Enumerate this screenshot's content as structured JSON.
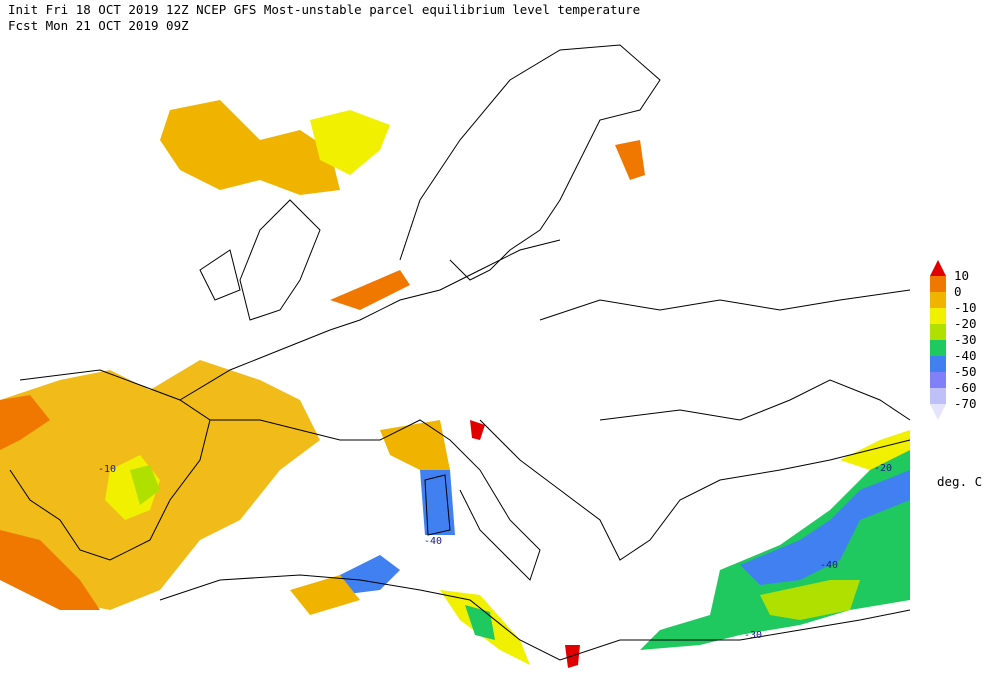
{
  "header": {
    "line1": "Init  Fri 18 OCT 2019 12Z   NCEP GFS Most-unstable parcel equilibrium level temperature",
    "line2": "Fcst Mon 21 OCT 2019 09Z"
  },
  "legend": {
    "labels": [
      "10",
      "0",
      "-10",
      "-20",
      "-30",
      "-40",
      "-50",
      "-60",
      "-70"
    ],
    "colors": [
      "#e00000",
      "#f07800",
      "#f0b400",
      "#f0f000",
      "#b0e000",
      "#20c860",
      "#4080f0",
      "#8080f8",
      "#c0c0f8",
      "#e4e4ff"
    ],
    "units": "deg. C"
  },
  "contour_labels": [
    "-10",
    "-40",
    "-20",
    "-40",
    "-30"
  ]
}
